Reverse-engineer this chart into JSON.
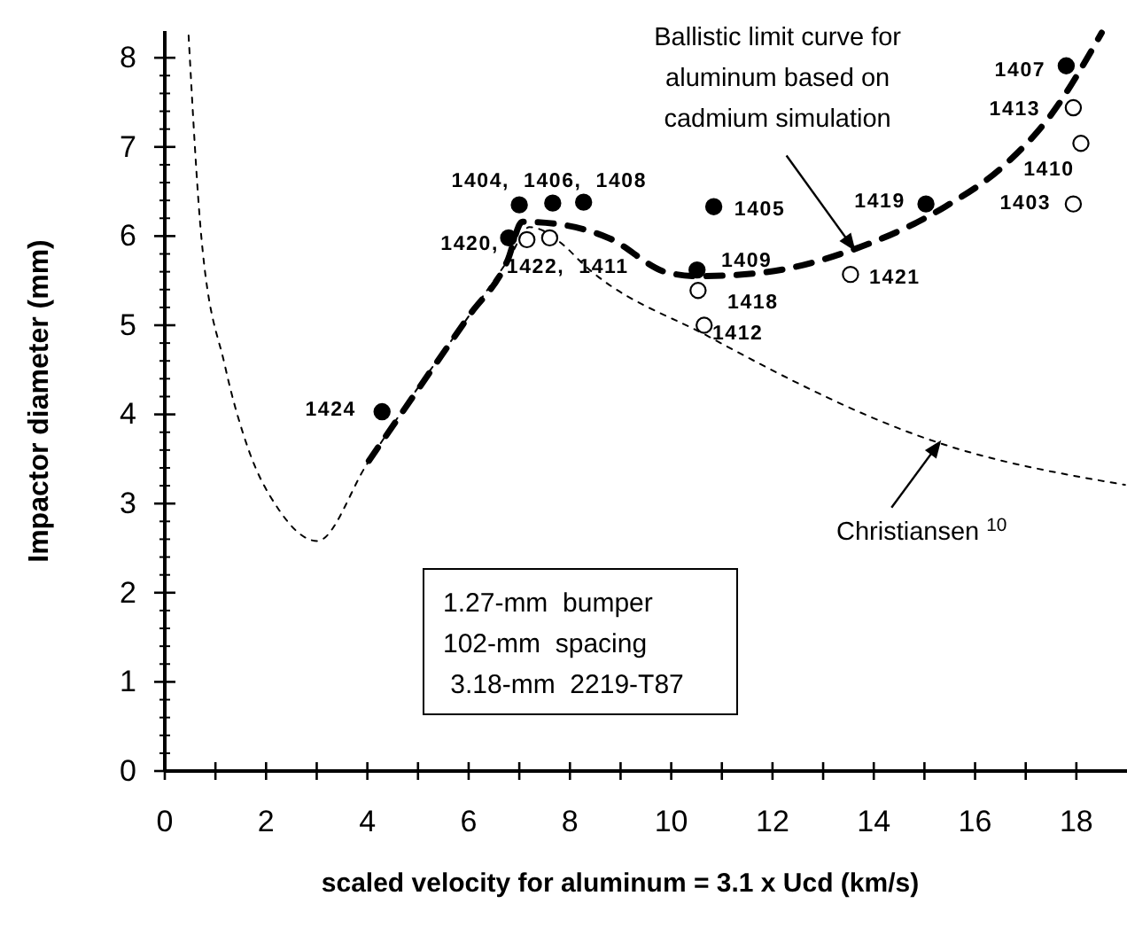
{
  "chart_data": {
    "type": "line",
    "xlabel": "scaled velocity for aluminum = 3.1 x Ucd  (km/s)",
    "ylabel": "Impactor diameter  (mm)",
    "xlim": [
      0,
      19
    ],
    "ylim": [
      0,
      8.3
    ],
    "xticks": [
      0,
      {
        "value": 1,
        "label": null
      },
      2,
      {
        "value": 3,
        "label": null
      },
      4,
      {
        "value": 5,
        "label": null
      },
      6,
      {
        "value": 7,
        "label": null
      },
      8,
      {
        "value": 9,
        "label": null
      },
      10,
      {
        "value": 11,
        "label": null
      },
      12,
      {
        "value": 13,
        "label": null
      },
      14,
      {
        "value": 15,
        "label": null
      },
      16,
      {
        "value": 17,
        "label": null
      },
      18
    ],
    "yticks": [
      0,
      {
        "value": 0.2,
        "label": null
      },
      {
        "value": 0.4,
        "label": null
      },
      {
        "value": 0.6,
        "label": null
      },
      {
        "value": 0.8,
        "label": null
      },
      1,
      {
        "value": 1.2,
        "label": null
      },
      {
        "value": 1.4,
        "label": null
      },
      {
        "value": 1.6,
        "label": null
      },
      {
        "value": 1.8,
        "label": null
      },
      2,
      {
        "value": 2.2,
        "label": null
      },
      {
        "value": 2.4,
        "label": null
      },
      {
        "value": 2.6,
        "label": null
      },
      {
        "value": 2.8,
        "label": null
      },
      3,
      {
        "value": 3.2,
        "label": null
      },
      {
        "value": 3.4,
        "label": null
      },
      {
        "value": 3.6,
        "label": null
      },
      {
        "value": 3.8,
        "label": null
      },
      4,
      {
        "value": 4.2,
        "label": null
      },
      {
        "value": 4.4,
        "label": null
      },
      {
        "value": 4.6,
        "label": null
      },
      {
        "value": 4.8,
        "label": null
      },
      5,
      {
        "value": 5.2,
        "label": null
      },
      {
        "value": 5.4,
        "label": null
      },
      {
        "value": 5.6,
        "label": null
      },
      {
        "value": 5.8,
        "label": null
      },
      6,
      {
        "value": 6.2,
        "label": null
      },
      {
        "value": 6.4,
        "label": null
      },
      {
        "value": 6.6,
        "label": null
      },
      {
        "value": 6.8,
        "label": null
      },
      7,
      {
        "value": 7.2,
        "label": null
      },
      {
        "value": 7.4,
        "label": null
      },
      {
        "value": 7.6,
        "label": null
      },
      {
        "value": 7.8,
        "label": null
      },
      8
    ],
    "grid": false,
    "series": [
      {
        "line_style": "dashed",
        "marker": "none",
        "color": "#000000",
        "x": [
          4.03,
          5,
          6,
          6.77,
          7.06,
          7.68,
          8.76,
          9.93,
          10.53,
          11.79,
          13.6,
          15.41,
          16.57,
          17.5,
          18.5
        ],
        "values": [
          3.48,
          4.28,
          5.1,
          5.73,
          6.16,
          6.14,
          5.98,
          5.59,
          5.55,
          5.59,
          5.85,
          6.33,
          6.79,
          7.36,
          8.28
        ]
      },
      {
        "line_style": "dotted",
        "marker": "none",
        "color": "#000000",
        "x": [
          0.47,
          0.72,
          1.19,
          1.65,
          2.23,
          3.01,
          4.0,
          5.0,
          6.0,
          6.8,
          7.2,
          7.95,
          8.18,
          10.75,
          15.29,
          18.96
        ],
        "values": [
          8.25,
          6.0,
          4.54,
          3.61,
          2.95,
          2.58,
          3.45,
          4.3,
          5.1,
          5.75,
          6.1,
          5.86,
          5.73,
          4.87,
          3.68,
          3.21
        ]
      },
      {
        "type": "scatter",
        "marker": "circle",
        "color": "#000000",
        "x": [
          4.29,
          7.0,
          7.66,
          8.27,
          6.79,
          10.84,
          10.51,
          15.03,
          17.8
        ],
        "values": [
          4.03,
          6.35,
          6.37,
          6.38,
          5.98,
          6.33,
          5.62,
          6.36,
          7.91
        ]
      },
      {
        "type": "scatter",
        "marker": "circle",
        "color": "#ffffff",
        "x": [
          7.15,
          7.6,
          10.53,
          10.65,
          13.54,
          17.94,
          18.09,
          17.94
        ],
        "values": [
          5.96,
          5.98,
          5.39,
          5.0,
          5.57,
          7.44,
          7.04,
          6.36
        ]
      }
    ],
    "annotations": [
      {
        "text": "Ballistic limit curve for\naluminum based on\ncadmium simulation",
        "x": 13.64,
        "y": 5.83
      },
      {
        "text": "Christiansen $^{10}$",
        "x": 15.33,
        "y": 3.71
      },
      "1.27-mm  bumper",
      "102-mm  spacing",
      " 3.18-mm  2219-T87",
      {
        "text": "1424",
        "x": 4.29,
        "y": 4.03
      },
      {
        "text": "1404,  1406,  1408",
        "x": 7.66,
        "y": 6.37
      },
      {
        "text": "1420,",
        "x": 6.79,
        "y": 5.98
      },
      {
        "text": "1422,  1411",
        "x": 7.15,
        "y": 5.96
      },
      {
        "text": "1405",
        "x": 10.84,
        "y": 6.33
      },
      {
        "text": "1409",
        "x": 10.51,
        "y": 5.62
      },
      {
        "text": "1418",
        "x": 10.53,
        "y": 5.39
      },
      {
        "text": "1412",
        "x": 10.65,
        "y": 5.0
      },
      {
        "text": "1421",
        "x": 13.54,
        "y": 5.57
      },
      {
        "text": "1419",
        "x": 15.03,
        "y": 6.36
      },
      {
        "text": "1407",
        "x": 17.8,
        "y": 7.91
      },
      {
        "text": "1413",
        "x": 17.94,
        "y": 7.44
      },
      {
        "text": "1410",
        "x": 18.09,
        "y": 7.04
      },
      {
        "text": "1403",
        "x": 17.94,
        "y": 6.36
      }
    ]
  }
}
